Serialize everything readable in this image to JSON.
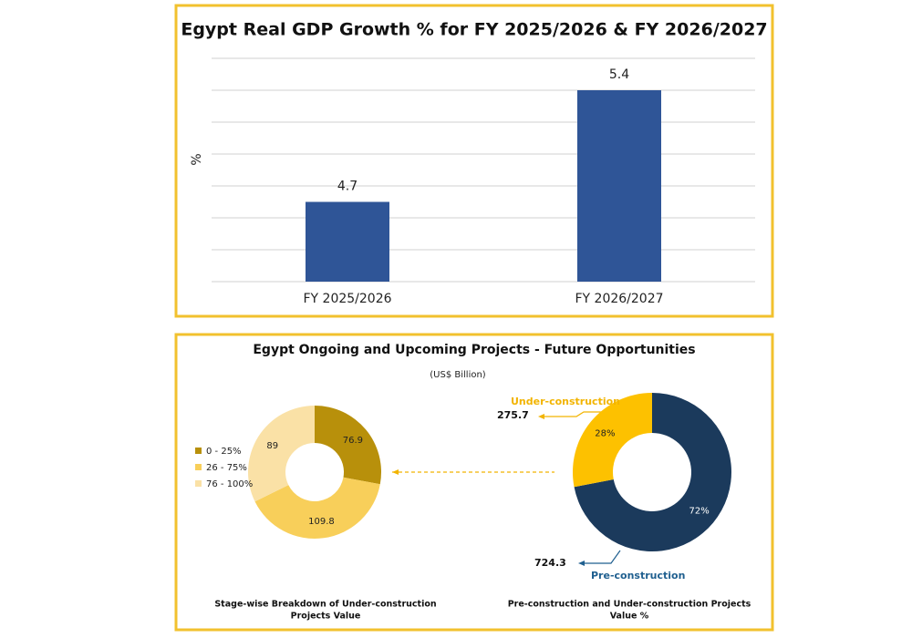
{
  "panel": {
    "title": "Egypt Ongoing and Upcoming Projects - Future Opportunities",
    "subtitle": "(US$ Billion)"
  },
  "chart_data": [
    {
      "type": "bar",
      "title": "Egypt Real GDP Growth % for FY 2025/2026 & FY 2026/2027",
      "ylabel": "%",
      "categories": [
        "FY 2025/2026",
        "FY 2026/2027"
      ],
      "values": [
        4.7,
        5.4
      ],
      "color": "#2f5597",
      "ylim": [
        4.2,
        5.6
      ],
      "yticks": [
        4.2,
        4.4,
        4.6,
        4.8,
        5.0,
        5.2,
        5.4,
        5.6
      ],
      "grid": true
    },
    {
      "type": "donut",
      "caption": "Stage-wise Breakdown of Under-construction Projects Value",
      "categories": [
        "0 - 25%",
        "26 - 75%",
        "76 - 100%"
      ],
      "values": [
        76.9,
        109.8,
        89
      ],
      "colors": [
        "#b8900b",
        "#f8cf5a",
        "#fae1a6"
      ],
      "legend": "left"
    },
    {
      "type": "donut",
      "caption": "Pre-construction and Under-construction Projects Value %",
      "categories": [
        "Pre-construction",
        "Under-construction"
      ],
      "values": [
        72,
        28
      ],
      "value_labels": [
        "72%",
        "28%"
      ],
      "amounts": [
        724.3,
        275.7
      ],
      "colors": [
        "#1b3a5c",
        "#fdc100"
      ]
    }
  ]
}
